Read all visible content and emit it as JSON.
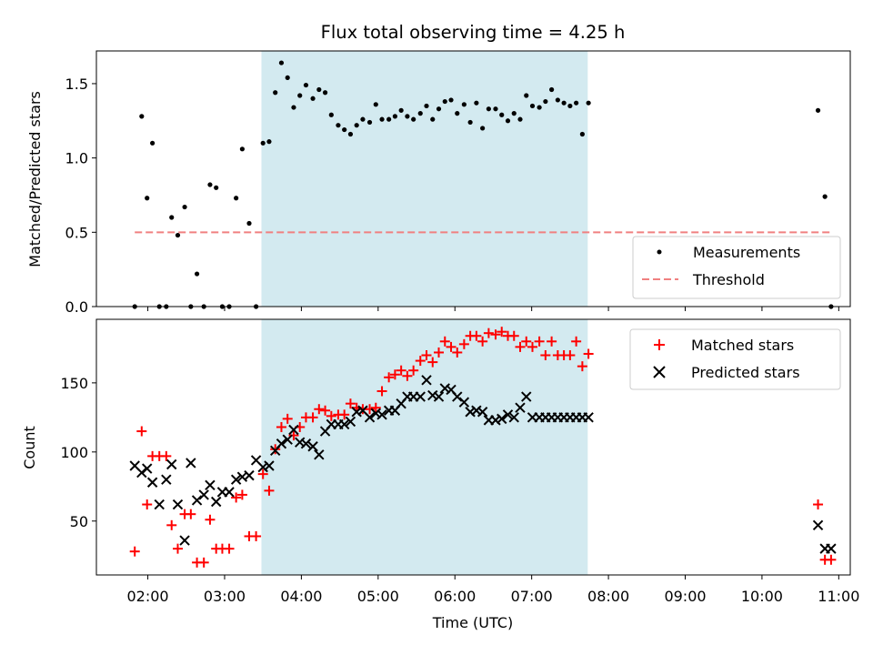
{
  "chart_data": {
    "type": "scatter",
    "title": "Flux total observing time = 4.25 h",
    "xlabel": "Time (UTC)",
    "x_units": "hours UTC",
    "xlim": [
      1.33,
      11.15
    ],
    "x_ticks": [
      {
        "value": 2,
        "label": "02:00"
      },
      {
        "value": 3,
        "label": "03:00"
      },
      {
        "value": 4,
        "label": "04:00"
      },
      {
        "value": 5,
        "label": "05:00"
      },
      {
        "value": 6,
        "label": "06:00"
      },
      {
        "value": 7,
        "label": "07:00"
      },
      {
        "value": 8,
        "label": "08:00"
      },
      {
        "value": 9,
        "label": "09:00"
      },
      {
        "value": 10,
        "label": "10:00"
      },
      {
        "value": 11,
        "label": "11:00"
      }
    ],
    "observing_window": {
      "start": 3.48,
      "end": 7.73,
      "color": "#d3eaf0"
    },
    "top_panel": {
      "ylabel": "Matched/Predicted stars",
      "ylim": [
        0,
        1.72
      ],
      "y_ticks": [
        {
          "value": 0,
          "label": "0.0"
        },
        {
          "value": 0.5,
          "label": "0.5"
        },
        {
          "value": 1.0,
          "label": "1.0"
        },
        {
          "value": 1.5,
          "label": "1.5"
        }
      ],
      "threshold": {
        "name": "Threshold",
        "value": 0.5,
        "x_start": 1.83,
        "x_end": 10.9,
        "color": "#f08080"
      },
      "measurements": {
        "name": "Measurements",
        "color": "#000000",
        "x": [
          1.83,
          1.92,
          1.99,
          2.06,
          2.15,
          2.24,
          2.31,
          2.39,
          2.48,
          2.56,
          2.64,
          2.73,
          2.81,
          2.89,
          2.97,
          3.06,
          3.15,
          3.23,
          3.32,
          3.41,
          3.5,
          3.58,
          3.66,
          3.74,
          3.82,
          3.9,
          3.98,
          4.06,
          4.15,
          4.23,
          4.31,
          4.39,
          4.48,
          4.56,
          4.64,
          4.72,
          4.8,
          4.89,
          4.97,
          5.05,
          5.14,
          5.22,
          5.3,
          5.38,
          5.46,
          5.55,
          5.63,
          5.71,
          5.79,
          5.87,
          5.95,
          6.03,
          6.12,
          6.2,
          6.28,
          6.36,
          6.44,
          6.53,
          6.61,
          6.69,
          6.77,
          6.85,
          6.93,
          7.01,
          7.1,
          7.18,
          7.26,
          7.34,
          7.42,
          7.5,
          7.58,
          7.66,
          7.74,
          10.73,
          10.82,
          10.9
        ],
        "y": [
          0.0,
          1.28,
          0.73,
          1.1,
          0.0,
          0.0,
          0.6,
          0.48,
          0.67,
          0.0,
          0.22,
          0.0,
          0.82,
          0.8,
          0.0,
          0.0,
          0.73,
          1.06,
          0.56,
          0.0,
          1.1,
          1.11,
          1.44,
          1.64,
          1.54,
          1.34,
          1.42,
          1.49,
          1.4,
          1.46,
          1.44,
          1.29,
          1.22,
          1.19,
          1.16,
          1.22,
          1.26,
          1.24,
          1.36,
          1.26,
          1.26,
          1.28,
          1.32,
          1.28,
          1.26,
          1.3,
          1.35,
          1.26,
          1.33,
          1.38,
          1.39,
          1.3,
          1.36,
          1.24,
          1.37,
          1.2,
          1.33,
          1.33,
          1.29,
          1.25,
          1.3,
          1.26,
          1.42,
          1.35,
          1.34,
          1.38,
          1.46,
          1.39,
          1.37,
          1.35,
          1.37,
          1.16,
          1.37,
          1.32,
          0.74,
          0.0
        ]
      }
    },
    "bottom_panel": {
      "ylabel": "Count",
      "ylim": [
        11,
        196
      ],
      "y_ticks": [
        {
          "value": 50,
          "label": "50"
        },
        {
          "value": 100,
          "label": "100"
        },
        {
          "value": 150,
          "label": "150"
        }
      ],
      "series": [
        {
          "name": "Matched stars",
          "marker": "plus",
          "color": "#ff0000",
          "x": [
            1.83,
            1.92,
            1.99,
            2.06,
            2.15,
            2.24,
            2.31,
            2.39,
            2.48,
            2.56,
            2.64,
            2.73,
            2.81,
            2.89,
            2.97,
            3.06,
            3.15,
            3.23,
            3.32,
            3.41,
            3.5,
            3.58,
            3.66,
            3.74,
            3.82,
            3.9,
            3.98,
            4.06,
            4.15,
            4.23,
            4.31,
            4.39,
            4.48,
            4.56,
            4.64,
            4.72,
            4.8,
            4.89,
            4.97,
            5.05,
            5.14,
            5.22,
            5.3,
            5.38,
            5.46,
            5.55,
            5.63,
            5.71,
            5.79,
            5.87,
            5.95,
            6.03,
            6.12,
            6.2,
            6.28,
            6.36,
            6.44,
            6.53,
            6.61,
            6.69,
            6.77,
            6.85,
            6.93,
            7.01,
            7.1,
            7.18,
            7.26,
            7.34,
            7.42,
            7.5,
            7.58,
            7.66,
            7.74,
            10.73,
            10.82,
            10.9
          ],
          "y": [
            28,
            115,
            62,
            97,
            97,
            97,
            47,
            30,
            55,
            55,
            20,
            20,
            51,
            30,
            30,
            30,
            67,
            69,
            39,
            39,
            84,
            72,
            102,
            118,
            124,
            112,
            118,
            125,
            125,
            131,
            130,
            126,
            127,
            127,
            135,
            132,
            131,
            131,
            132,
            144,
            154,
            156,
            159,
            155,
            159,
            166,
            170,
            165,
            172,
            180,
            176,
            172,
            178,
            184,
            184,
            180,
            186,
            185,
            187,
            184,
            184,
            176,
            180,
            176,
            180,
            170,
            180,
            170,
            170,
            170,
            180,
            162,
            171,
            62,
            22,
            22
          ]
        },
        {
          "name": "Predicted stars",
          "marker": "x",
          "color": "#000000",
          "x": [
            1.83,
            1.92,
            1.99,
            2.06,
            2.15,
            2.24,
            2.31,
            2.39,
            2.48,
            2.56,
            2.64,
            2.73,
            2.81,
            2.89,
            2.97,
            3.06,
            3.15,
            3.23,
            3.32,
            3.41,
            3.5,
            3.58,
            3.66,
            3.74,
            3.82,
            3.9,
            3.98,
            4.06,
            4.15,
            4.23,
            4.31,
            4.39,
            4.48,
            4.56,
            4.64,
            4.72,
            4.8,
            4.89,
            4.97,
            5.05,
            5.14,
            5.22,
            5.3,
            5.38,
            5.46,
            5.55,
            5.63,
            5.71,
            5.79,
            5.87,
            5.95,
            6.03,
            6.12,
            6.2,
            6.28,
            6.36,
            6.44,
            6.53,
            6.61,
            6.69,
            6.77,
            6.85,
            6.93,
            7.01,
            7.1,
            7.18,
            7.26,
            7.34,
            7.42,
            7.5,
            7.58,
            7.66,
            7.74,
            10.73,
            10.82,
            10.9
          ],
          "y": [
            90,
            85,
            88,
            78,
            62,
            80,
            91,
            62,
            36,
            92,
            65,
            69,
            76,
            64,
            71,
            71,
            80,
            82,
            83,
            94,
            89,
            90,
            101,
            106,
            109,
            116,
            107,
            106,
            104,
            98,
            115,
            120,
            120,
            120,
            122,
            129,
            130,
            125,
            128,
            127,
            130,
            130,
            135,
            140,
            140,
            140,
            152,
            141,
            140,
            146,
            145,
            140,
            136,
            129,
            130,
            129,
            123,
            123,
            124,
            127,
            125,
            132,
            140,
            125,
            125,
            125,
            125,
            125,
            125,
            125,
            125,
            125,
            125,
            47,
            30,
            30
          ]
        }
      ]
    }
  }
}
